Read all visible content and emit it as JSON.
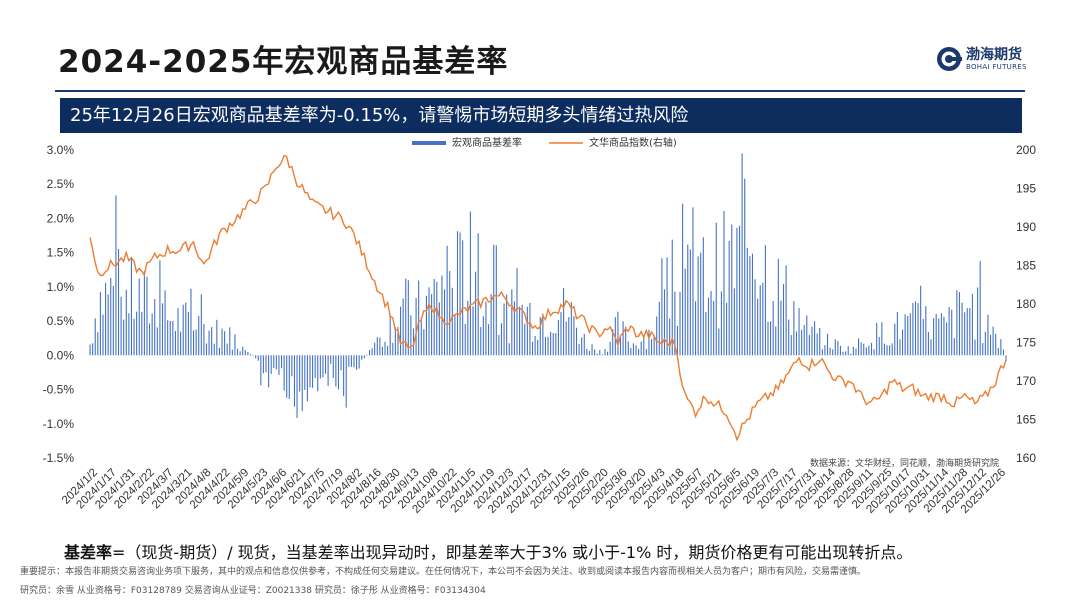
{
  "header": {
    "title": "2024-2025年宏观商品基差率",
    "logo_cn": "渤海期货",
    "logo_en": "BOHAI FUTURES"
  },
  "banner": {
    "text": "25年12月26日宏观商品基差率为-0.15%，请警惕市场短期多头情绪过热风险"
  },
  "footer": {
    "formula_term": "基差率",
    "formula_rest": "=（现货-期货）/ 现货，当基差率出现异动时，即基差率大于3% 或小于-1% 时，期货价格更有可能出现转折点。",
    "disclaimer": "重要提示：本报告非期货交易咨询业务项下服务，其中的观点和信息仅供参考，不构成任何交易建议。在任何情况下，本公司不会因为关注、收到或阅读本报告内容而视相关人员为客户；期市有风险，交易需谨慎。",
    "researchers": "研究员：余雪    从业资格号：F03128789    交易咨询从业证号：Z0021338    研究员：徐子彤    从业资格号：F03134304"
  },
  "chart_data": {
    "type": "bar+line",
    "legend": [
      "宏观商品基差率",
      "文华商品指数(右轴)"
    ],
    "legend_position": "top",
    "source": "数据来源：文华财经，同花顺，渤海期货研究院",
    "left_axis": {
      "ticks": [
        "3.0%",
        "2.5%",
        "2.0%",
        "1.5%",
        "1.0%",
        "0.5%",
        "0.0%",
        "-0.5%",
        "-1.0%",
        "-1.5%"
      ],
      "range": [
        -1.5,
        3.0
      ]
    },
    "right_axis": {
      "ticks": [
        "200",
        "195",
        "190",
        "185",
        "180",
        "175",
        "170",
        "165",
        "160"
      ],
      "range": [
        160,
        200
      ]
    },
    "x_labels": [
      "2024/1/2",
      "2024/1/17",
      "2024/1/31",
      "2024/2/22",
      "2024/3/7",
      "2024/3/21",
      "2024/4/8",
      "2024/4/22",
      "2024/5/9",
      "2024/5/23",
      "2024/6/6",
      "2024/6/21",
      "2024/7/5",
      "2024/7/19",
      "2024/8/2",
      "2024/8/16",
      "2024/8/30",
      "2024/9/13",
      "2024/10/8",
      "2024/10/22",
      "2024/11/5",
      "2024/11/19",
      "2024/12/3",
      "2024/12/17",
      "2024/12/31",
      "2025/1/15",
      "2025/2/6",
      "2025/2/20",
      "2025/3/6",
      "2025/3/20",
      "2025/4/3",
      "2025/4/18",
      "2025/5/7",
      "2025/5/21",
      "2025/6/5",
      "2025/6/19",
      "2025/7/3",
      "2025/7/17",
      "2025/7/31",
      "2025/8/14",
      "2025/8/28",
      "2025/9/11",
      "2025/9/25",
      "2025/10/17",
      "2025/10/31",
      "2025/11/14",
      "2025/11/28",
      "2025/12/12",
      "2025/12/26"
    ],
    "basis_anchors": [
      [
        0,
        0.2
      ],
      [
        3,
        1.0
      ],
      [
        10,
        1.2
      ],
      [
        20,
        1.0
      ],
      [
        30,
        0.7
      ],
      [
        45,
        0.5
      ],
      [
        55,
        0.3
      ],
      [
        62,
        0.05
      ],
      [
        66,
        -0.3
      ],
      [
        72,
        -0.6
      ],
      [
        78,
        -0.8
      ],
      [
        84,
        -0.6
      ],
      [
        90,
        -0.3
      ],
      [
        96,
        -0.5
      ],
      [
        102,
        -0.3
      ],
      [
        108,
        0.1
      ],
      [
        114,
        0.4
      ],
      [
        120,
        0.9
      ],
      [
        126,
        0.8
      ],
      [
        132,
        1.0
      ],
      [
        138,
        1.5
      ],
      [
        144,
        1.4
      ],
      [
        150,
        1.0
      ],
      [
        156,
        0.9
      ],
      [
        162,
        0.7
      ],
      [
        168,
        0.8
      ],
      [
        174,
        0.7
      ],
      [
        180,
        0.9
      ],
      [
        186,
        0.7
      ],
      [
        192,
        0.2
      ],
      [
        198,
        0.05
      ],
      [
        204,
        0.5
      ],
      [
        210,
        0.2
      ],
      [
        216,
        0.4
      ],
      [
        222,
        0.8
      ],
      [
        228,
        1.2
      ],
      [
        234,
        1.3
      ],
      [
        240,
        1.5
      ],
      [
        246,
        1.6
      ],
      [
        252,
        1.8
      ],
      [
        256,
        2.3
      ],
      [
        260,
        1.7
      ],
      [
        264,
        1.3
      ],
      [
        270,
        1.0
      ],
      [
        276,
        0.5
      ],
      [
        282,
        0.3
      ],
      [
        288,
        0.2
      ],
      [
        294,
        0.1
      ],
      [
        300,
        0.3
      ],
      [
        306,
        0.4
      ],
      [
        312,
        0.5
      ],
      [
        318,
        0.6
      ],
      [
        324,
        0.6
      ],
      [
        330,
        0.5
      ],
      [
        336,
        0.8
      ],
      [
        340,
        0.9
      ],
      [
        344,
        0.7
      ],
      [
        348,
        0.5
      ],
      [
        352,
        0.3
      ],
      [
        354,
        -0.1
      ]
    ],
    "index_anchors": [
      [
        0,
        189
      ],
      [
        3,
        184
      ],
      [
        8,
        185
      ],
      [
        14,
        186
      ],
      [
        20,
        184
      ],
      [
        25,
        186
      ],
      [
        30,
        187
      ],
      [
        35,
        187
      ],
      [
        40,
        188
      ],
      [
        44,
        185
      ],
      [
        50,
        189
      ],
      [
        56,
        191
      ],
      [
        62,
        193
      ],
      [
        68,
        195
      ],
      [
        72,
        198
      ],
      [
        76,
        199
      ],
      [
        80,
        196
      ],
      [
        86,
        193
      ],
      [
        92,
        192
      ],
      [
        98,
        191
      ],
      [
        102,
        189
      ],
      [
        106,
        186
      ],
      [
        110,
        183
      ],
      [
        116,
        179
      ],
      [
        120,
        175
      ],
      [
        124,
        174
      ],
      [
        128,
        178
      ],
      [
        132,
        180
      ],
      [
        136,
        178
      ],
      [
        140,
        178
      ],
      [
        144,
        179
      ],
      [
        150,
        180
      ],
      [
        156,
        181
      ],
      [
        160,
        181
      ],
      [
        166,
        179
      ],
      [
        172,
        177
      ],
      [
        178,
        179
      ],
      [
        184,
        180
      ],
      [
        190,
        178
      ],
      [
        196,
        176
      ],
      [
        200,
        177
      ],
      [
        204,
        175
      ],
      [
        208,
        177
      ],
      [
        212,
        176
      ],
      [
        216,
        176
      ],
      [
        220,
        175
      ],
      [
        226,
        175
      ],
      [
        230,
        168
      ],
      [
        234,
        166
      ],
      [
        238,
        168
      ],
      [
        242,
        167
      ],
      [
        246,
        166
      ],
      [
        250,
        163
      ],
      [
        254,
        165
      ],
      [
        258,
        167
      ],
      [
        262,
        168
      ],
      [
        266,
        169
      ],
      [
        270,
        171
      ],
      [
        274,
        173
      ],
      [
        278,
        172
      ],
      [
        282,
        173
      ],
      [
        286,
        171
      ],
      [
        290,
        170
      ],
      [
        294,
        170
      ],
      [
        298,
        168
      ],
      [
        302,
        167
      ],
      [
        306,
        168
      ],
      [
        310,
        170
      ],
      [
        314,
        169
      ],
      [
        318,
        169
      ],
      [
        322,
        168
      ],
      [
        326,
        168
      ],
      [
        330,
        168
      ],
      [
        334,
        167
      ],
      [
        338,
        168
      ],
      [
        342,
        167
      ],
      [
        346,
        168
      ],
      [
        350,
        170
      ],
      [
        354,
        173
      ]
    ],
    "n_days": 355
  }
}
